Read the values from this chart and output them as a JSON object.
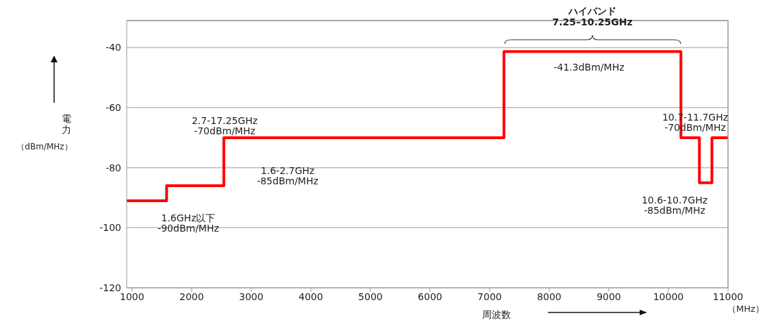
{
  "chart_data": {
    "type": "step",
    "xlabel": "周波数",
    "ylabel": "電力",
    "x": [
      910,
      1580,
      2540,
      7240,
      10210,
      10520,
      10730,
      11000
    ],
    "series": [
      {
        "color": "#ff0000",
        "values": [
          -91,
          -86,
          -70,
          -41.3,
          -70,
          -85,
          -70,
          -70
        ]
      }
    ],
    "xlim": [
      910,
      11000
    ],
    "xticks": [
      1000,
      2000,
      3000,
      4000,
      5000,
      6000,
      7000,
      8000,
      9000,
      10000,
      11000
    ],
    "ylim": [
      -120,
      -31
    ],
    "yticks": [
      -120,
      -100,
      -80,
      -60,
      -40
    ],
    "grid": "y",
    "marker": "none",
    "line_style": "solid",
    "annotations": [
      "1.6GHz以下\n-90dBm/MHz",
      "2.7-17.25GHz\n-70dBm/MHz",
      "1.6-2.7GHz\n-85dBm/MHz",
      "-41.3dBm/MHz",
      "10.7-11.7GHz\n-70dBm/MHz",
      "10.6-10.7GHz\n-85dBm/MHz",
      "ハイバンド\n7.25–10.25GHz",
      "（MHz）",
      "（dBm/MHz）"
    ]
  }
}
